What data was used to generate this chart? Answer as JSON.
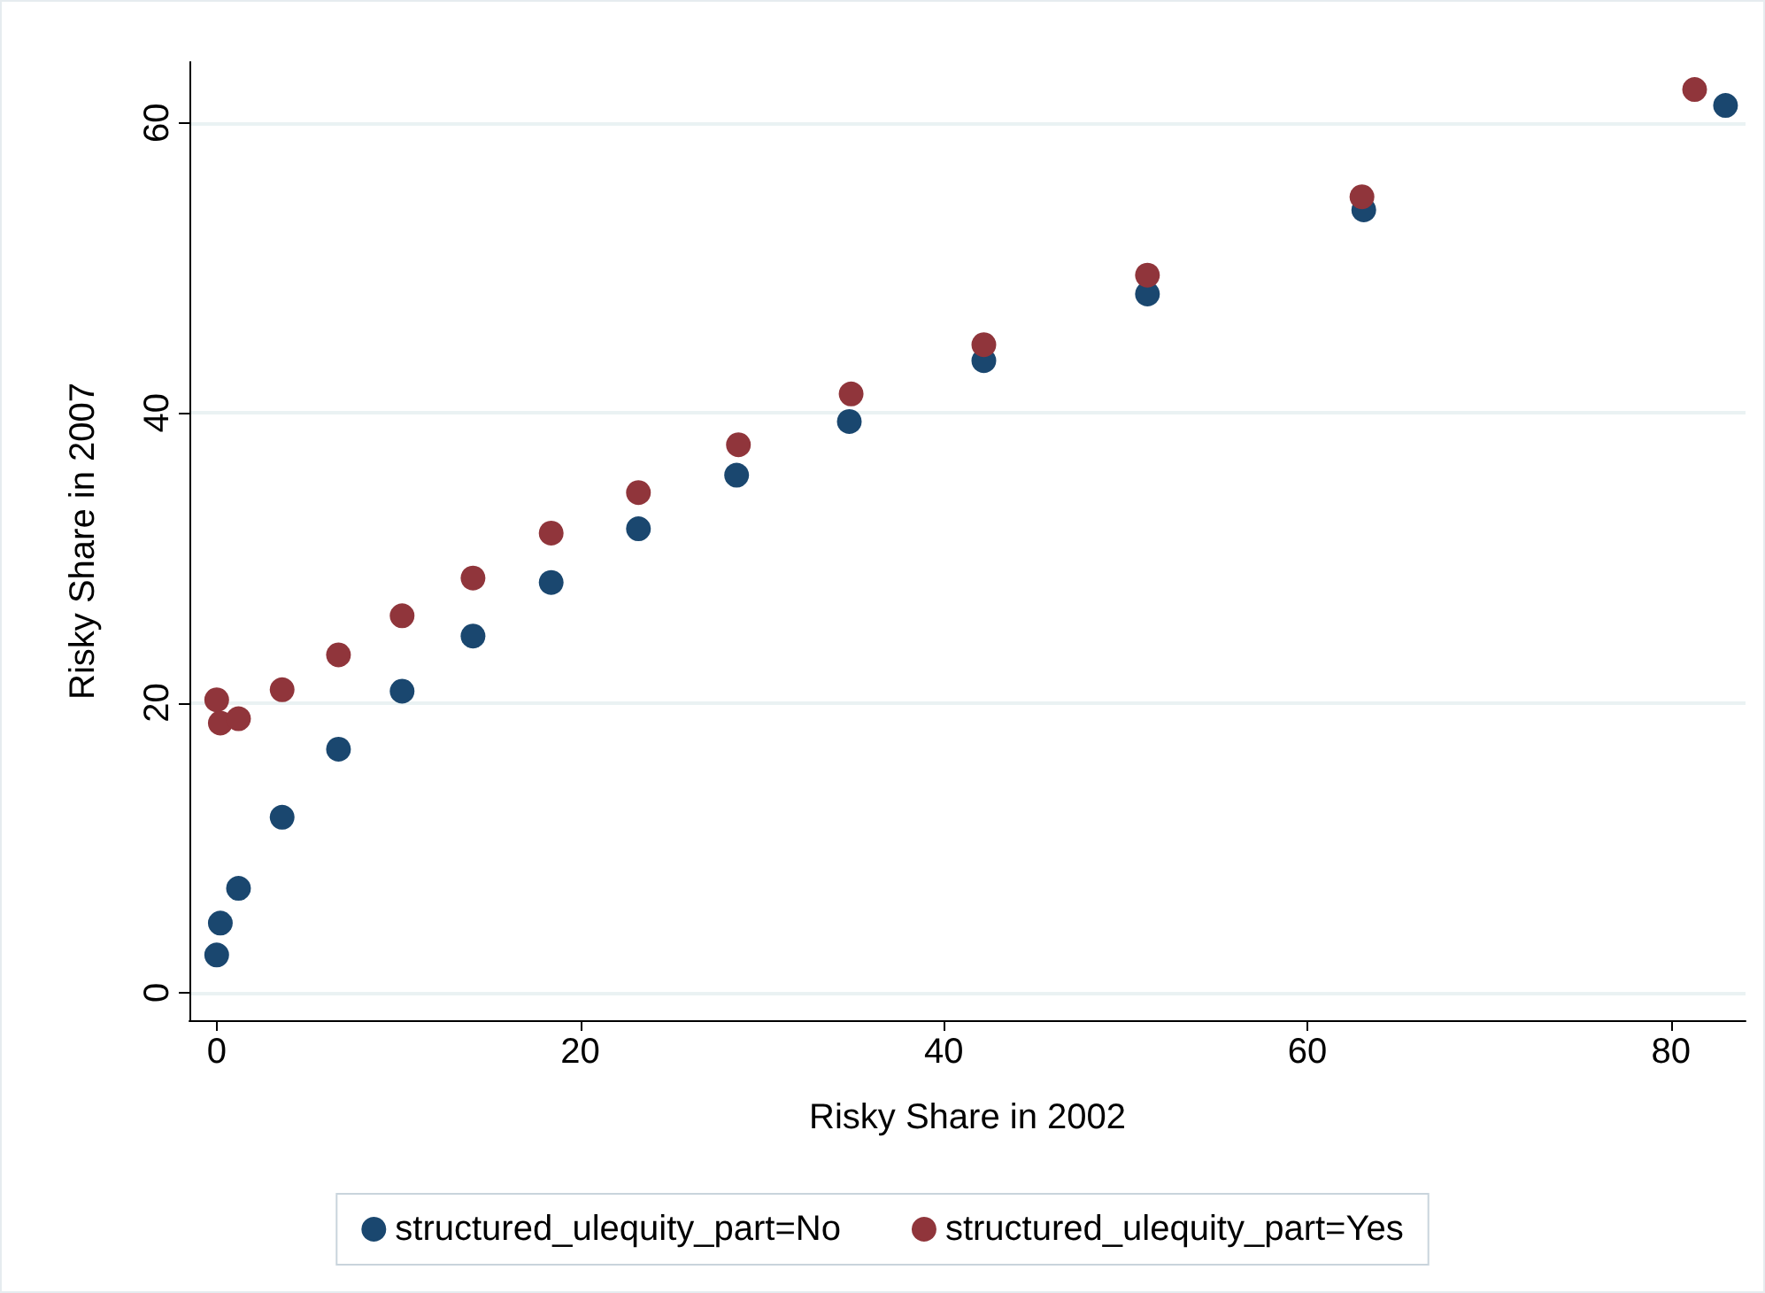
{
  "chart_data": {
    "type": "scatter",
    "xlabel": "Risky Share in 2002",
    "ylabel": "Risky Share in 2007",
    "xlim": [
      -1.5,
      84.1
    ],
    "ylim": [
      -1.9,
      64.2
    ],
    "xticks": [
      0,
      20,
      40,
      60,
      80
    ],
    "yticks": [
      0,
      20,
      40,
      60
    ],
    "grid": "y",
    "legend": "bottom",
    "marker": "circle",
    "series": [
      {
        "name": "structured_ulequity_part=No",
        "color": "#1a476f",
        "x": [
          0,
          0.2,
          1.2,
          3.6,
          6.7,
          10.2,
          14.1,
          18.4,
          23.2,
          28.6,
          34.8,
          42.2,
          51.2,
          63.1,
          83.0
        ],
        "values": [
          2.6,
          4.8,
          7.2,
          12.1,
          16.8,
          20.8,
          24.6,
          28.3,
          32.0,
          35.7,
          39.4,
          43.6,
          48.2,
          54.0,
          61.2
        ]
      },
      {
        "name": "structured_ulequity_part=Yes",
        "color": "#90353b",
        "x": [
          0,
          0.2,
          1.2,
          3.6,
          6.7,
          10.2,
          14.1,
          18.4,
          23.2,
          28.7,
          34.9,
          42.2,
          51.2,
          63.0,
          81.3
        ],
        "values": [
          20.2,
          18.6,
          18.9,
          20.9,
          23.3,
          26.0,
          28.6,
          31.7,
          34.5,
          37.8,
          41.3,
          44.7,
          49.5,
          54.9,
          62.3
        ]
      }
    ]
  }
}
